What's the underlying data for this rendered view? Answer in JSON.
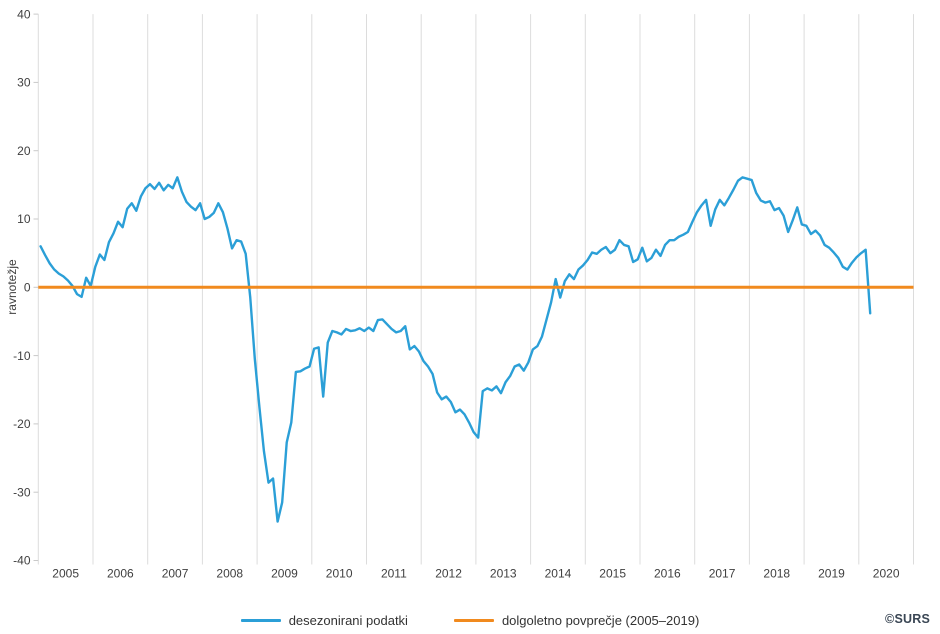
{
  "chart_data": {
    "type": "line",
    "title": "",
    "xlabel": "",
    "ylabel": "ravnotežje",
    "ylim": [
      -40,
      40
    ],
    "yticks": [
      40,
      30,
      20,
      10,
      0,
      -10,
      -20,
      -30,
      -40
    ],
    "xticks": [
      "2005",
      "2006",
      "2007",
      "2008",
      "2009",
      "2010",
      "2011",
      "2012",
      "2013",
      "2014",
      "2015",
      "2016",
      "2017",
      "2018",
      "2019",
      "2020"
    ],
    "frequency": "monthly",
    "start_month": "2005-01",
    "end_month": "2020-03",
    "grid": "vertical-year-gridlines-only",
    "legend_position": "bottom-center",
    "series": [
      {
        "name": "desezonirani podatki",
        "color": "#2B9FD7",
        "values": [
          6,
          4.7,
          3.5,
          2.6,
          2,
          1.6,
          1,
          0.2,
          -1,
          -1.4,
          1.4,
          0.2,
          3,
          4.8,
          4,
          6.6,
          7.9,
          9.6,
          8.8,
          11.5,
          12.3,
          11.2,
          13.3,
          14.5,
          15.1,
          14.4,
          15.3,
          14.2,
          15,
          14.5,
          16.1,
          14,
          12.5,
          11.8,
          11.3,
          12.3,
          10,
          10.3,
          10.9,
          12.3,
          11,
          8.6,
          5.7,
          6.9,
          6.7,
          4.9,
          -1.5,
          -10.5,
          -17.5,
          -24,
          -28.6,
          -28,
          -34.3,
          -31.5,
          -22.7,
          -19.8,
          -12.4,
          -12.3,
          -11.9,
          -11.6,
          -9,
          -8.8,
          -16,
          -8.1,
          -6.4,
          -6.6,
          -6.9,
          -6.1,
          -6.4,
          -6.3,
          -6,
          -6.4,
          -5.9,
          -6.4,
          -4.8,
          -4.7,
          -5.4,
          -6.1,
          -6.6,
          -6.4,
          -5.7,
          -9.1,
          -8.6,
          -9.4,
          -10.8,
          -11.6,
          -12.7,
          -15.4,
          -16.4,
          -16,
          -16.8,
          -18.3,
          -17.9,
          -18.6,
          -19.8,
          -21.2,
          -22,
          -15.2,
          -14.8,
          -15.1,
          -14.5,
          -15.5,
          -13.9,
          -13,
          -11.6,
          -11.3,
          -12.2,
          -11,
          -9.1,
          -8.6,
          -7.2,
          -4.7,
          -2.2,
          1.2,
          -1.5,
          0.9,
          1.9,
          1.2,
          2.6,
          3.2,
          4,
          5.1,
          4.9,
          5.5,
          5.9,
          5,
          5.5,
          6.9,
          6.2,
          6,
          3.7,
          4.1,
          5.8,
          3.8,
          4.3,
          5.5,
          4.6,
          6.2,
          6.9,
          6.9,
          7.4,
          7.7,
          8.1,
          9.6,
          11,
          12,
          12.8,
          9,
          11.4,
          12.8,
          12,
          13.1,
          14.3,
          15.6,
          16.1,
          15.9,
          15.7,
          13.8,
          12.7,
          12.4,
          12.6,
          11.3,
          11.6,
          10.5,
          8.1,
          9.8,
          11.7,
          9.2,
          9,
          7.8,
          8.3,
          7.6,
          6.2,
          5.8,
          5.1,
          4.3,
          3,
          2.6,
          3.6,
          4.4,
          5,
          5.5,
          -3.8
        ]
      },
      {
        "name": "dolgoletno povprečje (2005–2019)",
        "color": "#F18A1E",
        "type": "constant",
        "value": 0
      }
    ],
    "credit": "©SURS"
  },
  "style": {
    "gridline_color": "#dcdcdc",
    "tick_color": "#c9c9c9",
    "axis_text_color": "#404040"
  }
}
